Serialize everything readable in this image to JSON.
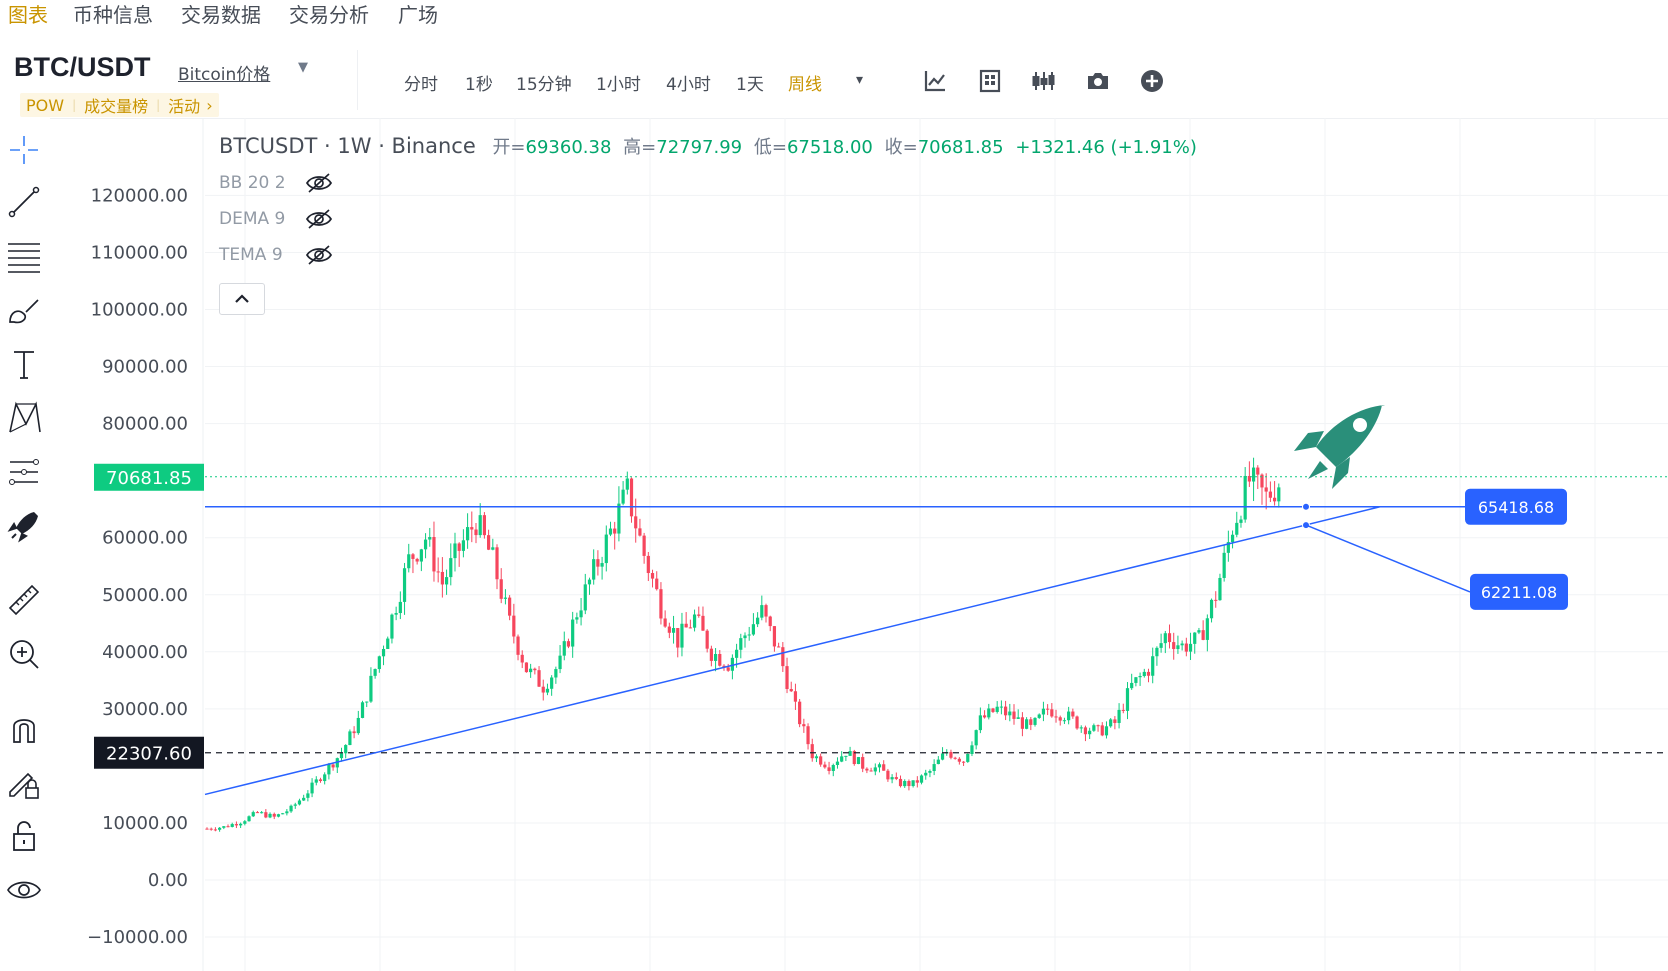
{
  "top_nav": {
    "tabs": [
      {
        "label": "图表",
        "active": true
      },
      {
        "label": "币种信息",
        "active": false
      },
      {
        "label": "交易数据",
        "active": false
      },
      {
        "label": "交易分析",
        "active": false
      },
      {
        "label": "广场",
        "active": false
      }
    ]
  },
  "header": {
    "symbol": "BTC/USDT",
    "price_link": "Bitcoin价格",
    "tags": [
      "POW",
      "成交量榜",
      "活动"
    ],
    "tag_arrow": "›"
  },
  "toolbar": {
    "intervals": [
      "分时",
      "1秒",
      "15分钟",
      "1小时",
      "4小时",
      "1天",
      "周线"
    ],
    "active_interval": "周线",
    "more_caret": "▾",
    "tools": [
      "indicator-icon",
      "templates-icon",
      "chart-type-icon",
      "camera-icon",
      "plus-icon"
    ]
  },
  "legend": {
    "title": "BTCUSDT · 1W · Binance",
    "open_label": "开=",
    "open": "69360.38",
    "high_label": "高=",
    "high": "72797.99",
    "low_label": "低=",
    "low": "67518.00",
    "close_label": "收=",
    "close": "70681.85",
    "change": "+1321.46 (+1.91%)",
    "indicators": [
      {
        "name": "BB 20 2"
      },
      {
        "name": "DEMA 9"
      },
      {
        "name": "TEMA 9"
      }
    ],
    "collapse_glyph": "⌃"
  },
  "left_tools": [
    "crosshair-icon",
    "trendline-icon",
    "fib-icon",
    "brush-icon",
    "text-icon",
    "pattern-icon",
    "prediction-icon",
    "rocket-icon",
    "ruler-icon",
    "zoom-in-icon",
    "magnet-icon",
    "lock-draw-icon",
    "unlock-icon",
    "eye-icon"
  ],
  "price_axis": {
    "labels": [
      "120000.00",
      "110000.00",
      "100000.00",
      "90000.00",
      "80000.00",
      "60000.00",
      "50000.00",
      "40000.00",
      "30000.00",
      "10000.00",
      "0.00",
      "−10000.00"
    ],
    "current_price_label": "70681.85",
    "crosshair_label": "22307.60"
  },
  "drawings": {
    "horizontal_line_label": "65418.68",
    "trend_line_label": "62211.08"
  },
  "colors": {
    "up": "#0ecb81",
    "down": "#f6465d",
    "accent": "#c99400",
    "drawing": "#2962ff",
    "rocket": "#2a8f7a"
  },
  "chart_data": {
    "type": "candlestick",
    "title": "BTCUSDT · 1W · Binance",
    "y_axis_range": [
      -10000,
      120000
    ],
    "y_ticks": [
      120000,
      110000,
      100000,
      90000,
      80000,
      60000,
      50000,
      40000,
      30000,
      10000,
      0,
      -10000
    ],
    "current_price": 70681.85,
    "crosshair_price": 22307.6,
    "horizontal_line": 65418.68,
    "trend_line_value": 62211.08,
    "price_path": [
      9000,
      9300,
      10200,
      11800,
      11000,
      12500,
      15500,
      19000,
      22300,
      28000,
      37000,
      46000,
      56000,
      60000,
      52000,
      58000,
      63000,
      56000,
      45000,
      37000,
      34000,
      38000,
      47000,
      54000,
      61000,
      68000,
      57000,
      48000,
      42000,
      46000,
      40000,
      38000,
      43000,
      47000,
      40000,
      30000,
      22000,
      20000,
      22500,
      20000,
      19500,
      17000,
      16800,
      19000,
      22500,
      21000,
      28000,
      30000,
      28500,
      26500,
      30000,
      29000,
      27000,
      26000,
      27500,
      34000,
      37000,
      43000,
      41000,
      42000,
      50000,
      62000,
      70000,
      67000,
      70681.85
    ]
  }
}
